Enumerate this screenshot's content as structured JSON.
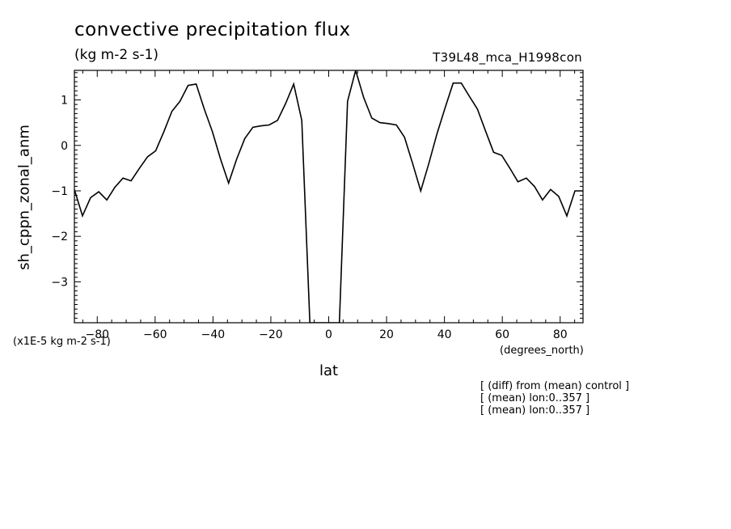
{
  "chart_data": {
    "type": "line",
    "title": "convective precipitation flux",
    "subtitle": "(kg m-2 s-1)",
    "experiment": "T39L48_mca_H1998con",
    "xlabel": "lat",
    "x_units": "(degrees_north)",
    "ylabel": "sh_cppn_zonal_anm",
    "y_scale_note": "(x1E-5 kg m-2 s-1)",
    "notes": [
      "[ (diff) from (mean) control ]",
      "[ (mean) lon:0..357 ]",
      "[ (mean) lon:0..357 ]"
    ],
    "xlim": [
      -87.9,
      87.9
    ],
    "ylim": [
      -3.9,
      1.65
    ],
    "x_ticks": [
      -80,
      -60,
      -40,
      -20,
      0,
      20,
      40,
      60,
      80
    ],
    "y_ticks": [
      -3,
      -2,
      -1,
      0,
      1
    ],
    "grid": false,
    "series": [
      {
        "x": [
          -87.9,
          -85.1,
          -82.3,
          -79.5,
          -76.7,
          -73.9,
          -71.1,
          -68.3,
          -65.4,
          -62.6,
          -59.8,
          -57.0,
          -54.2,
          -51.4,
          -48.6,
          -45.8,
          -43.0,
          -40.2,
          -37.4,
          -34.6,
          -31.8,
          -29.0,
          -26.2,
          -23.4,
          -20.6,
          -17.7,
          -14.9,
          -12.1,
          -9.3,
          -6.5,
          -3.7,
          -0.9,
          0.9,
          3.7,
          6.5,
          9.3,
          12.1,
          14.9,
          17.7,
          20.6,
          23.4,
          26.2,
          29.0,
          31.8,
          34.6,
          37.4,
          40.2,
          43.0,
          45.8,
          48.6,
          51.4,
          54.2,
          57.0,
          59.8,
          62.6,
          65.4,
          68.3,
          71.1,
          73.9,
          76.7,
          79.5,
          82.3,
          85.1,
          87.9
        ],
        "y": [
          -0.97,
          -1.55,
          -1.15,
          -1.02,
          -1.2,
          -0.92,
          -0.72,
          -0.78,
          -0.5,
          -0.25,
          -0.12,
          0.3,
          0.75,
          0.97,
          1.32,
          1.35,
          0.8,
          0.3,
          -0.3,
          -0.83,
          -0.3,
          0.15,
          0.4,
          0.43,
          0.45,
          0.55,
          0.92,
          1.35,
          0.55,
          -3.9,
          -3.9,
          -3.9,
          -3.9,
          -3.9,
          0.97,
          1.65,
          1.05,
          0.6,
          0.5,
          0.48,
          0.45,
          0.18,
          -0.4,
          -1.0,
          -0.4,
          0.25,
          0.82,
          1.37,
          1.37,
          1.08,
          0.8,
          0.32,
          -0.15,
          -0.22,
          -0.5,
          -0.8,
          -0.72,
          -0.9,
          -1.2,
          -0.97,
          -1.12,
          -1.55,
          -1.0,
          -1.0
        ]
      }
    ]
  }
}
